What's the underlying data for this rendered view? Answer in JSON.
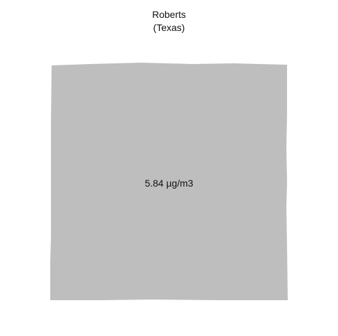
{
  "map": {
    "title": "Roberts",
    "subtitle": "(Texas)",
    "region_value_label": "5.84 µg/m3",
    "fill_color": "#bebebe",
    "background_color": "#ffffff"
  }
}
